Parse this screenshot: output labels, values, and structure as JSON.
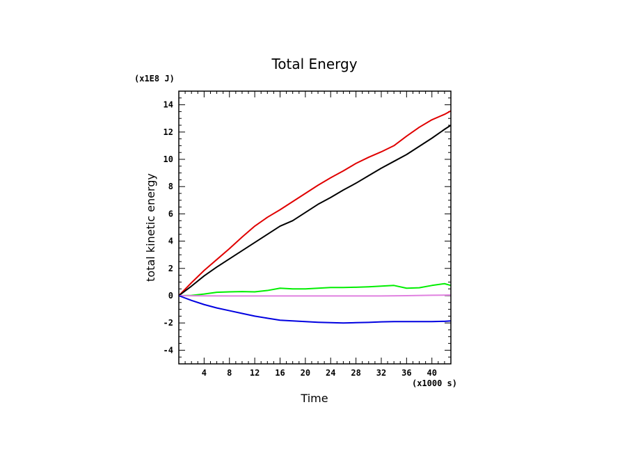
{
  "chart_data": {
    "type": "line",
    "title": "Total Energy",
    "xlabel": "Time",
    "ylabel": "total kinetic energy",
    "x_unit": "(x1000 s)",
    "y_unit": "(x1E8 J)",
    "xlim": [
      0,
      43
    ],
    "ylim": [
      -5,
      15
    ],
    "xticks": [
      "4",
      "8",
      "12",
      "16",
      "20",
      "24",
      "28",
      "32",
      "36",
      "40"
    ],
    "yticks": [
      "-4",
      "-2",
      "0",
      "2",
      "4",
      "6",
      "8",
      "10",
      "12",
      "14"
    ],
    "grid": false,
    "legend": "none",
    "series": [
      {
        "color": "#e00000",
        "x": [
          0,
          2,
          4,
          6,
          8,
          10,
          12,
          14,
          16,
          18,
          20,
          22,
          24,
          26,
          28,
          30,
          32,
          34,
          36,
          38,
          40,
          42,
          43
        ],
        "y": [
          0,
          0.95,
          1.85,
          2.65,
          3.45,
          4.3,
          5.1,
          5.75,
          6.3,
          6.9,
          7.5,
          8.1,
          8.65,
          9.15,
          9.7,
          10.15,
          10.55,
          11.0,
          11.7,
          12.35,
          12.9,
          13.3,
          13.55
        ]
      },
      {
        "color": "#000000",
        "x": [
          0,
          2,
          4,
          6,
          8,
          10,
          12,
          14,
          16,
          18,
          20,
          22,
          24,
          26,
          28,
          30,
          32,
          34,
          36,
          38,
          40,
          42,
          43
        ],
        "y": [
          0,
          0.7,
          1.45,
          2.1,
          2.7,
          3.3,
          3.9,
          4.5,
          5.1,
          5.5,
          6.1,
          6.7,
          7.2,
          7.75,
          8.25,
          8.8,
          9.35,
          9.85,
          10.35,
          10.95,
          11.55,
          12.2,
          12.5
        ]
      },
      {
        "color": "#00ee00",
        "x": [
          0,
          2,
          4,
          6,
          8,
          10,
          12,
          14,
          16,
          18,
          20,
          22,
          24,
          26,
          28,
          30,
          32,
          34,
          36,
          38,
          40,
          42,
          43
        ],
        "y": [
          0,
          0.02,
          0.12,
          0.25,
          0.28,
          0.3,
          0.28,
          0.38,
          0.55,
          0.5,
          0.5,
          0.55,
          0.6,
          0.6,
          0.62,
          0.65,
          0.7,
          0.75,
          0.55,
          0.58,
          0.75,
          0.88,
          0.75
        ]
      },
      {
        "color": "#e080e0",
        "x": [
          0,
          4,
          8,
          12,
          16,
          20,
          24,
          28,
          32,
          36,
          40,
          43
        ],
        "y": [
          0,
          -0.01,
          -0.02,
          -0.02,
          -0.02,
          -0.02,
          -0.02,
          -0.02,
          -0.02,
          0.0,
          0.03,
          0.05
        ]
      },
      {
        "color": "#0000e0",
        "x": [
          0,
          2,
          4,
          6,
          8,
          10,
          12,
          14,
          16,
          18,
          20,
          22,
          24,
          26,
          28,
          30,
          32,
          34,
          36,
          38,
          40,
          42,
          43
        ],
        "y": [
          0,
          -0.35,
          -0.65,
          -0.9,
          -1.1,
          -1.3,
          -1.5,
          -1.65,
          -1.8,
          -1.85,
          -1.9,
          -1.95,
          -1.98,
          -2.0,
          -1.98,
          -1.96,
          -1.92,
          -1.9,
          -1.9,
          -1.9,
          -1.9,
          -1.88,
          -1.85
        ]
      }
    ]
  }
}
